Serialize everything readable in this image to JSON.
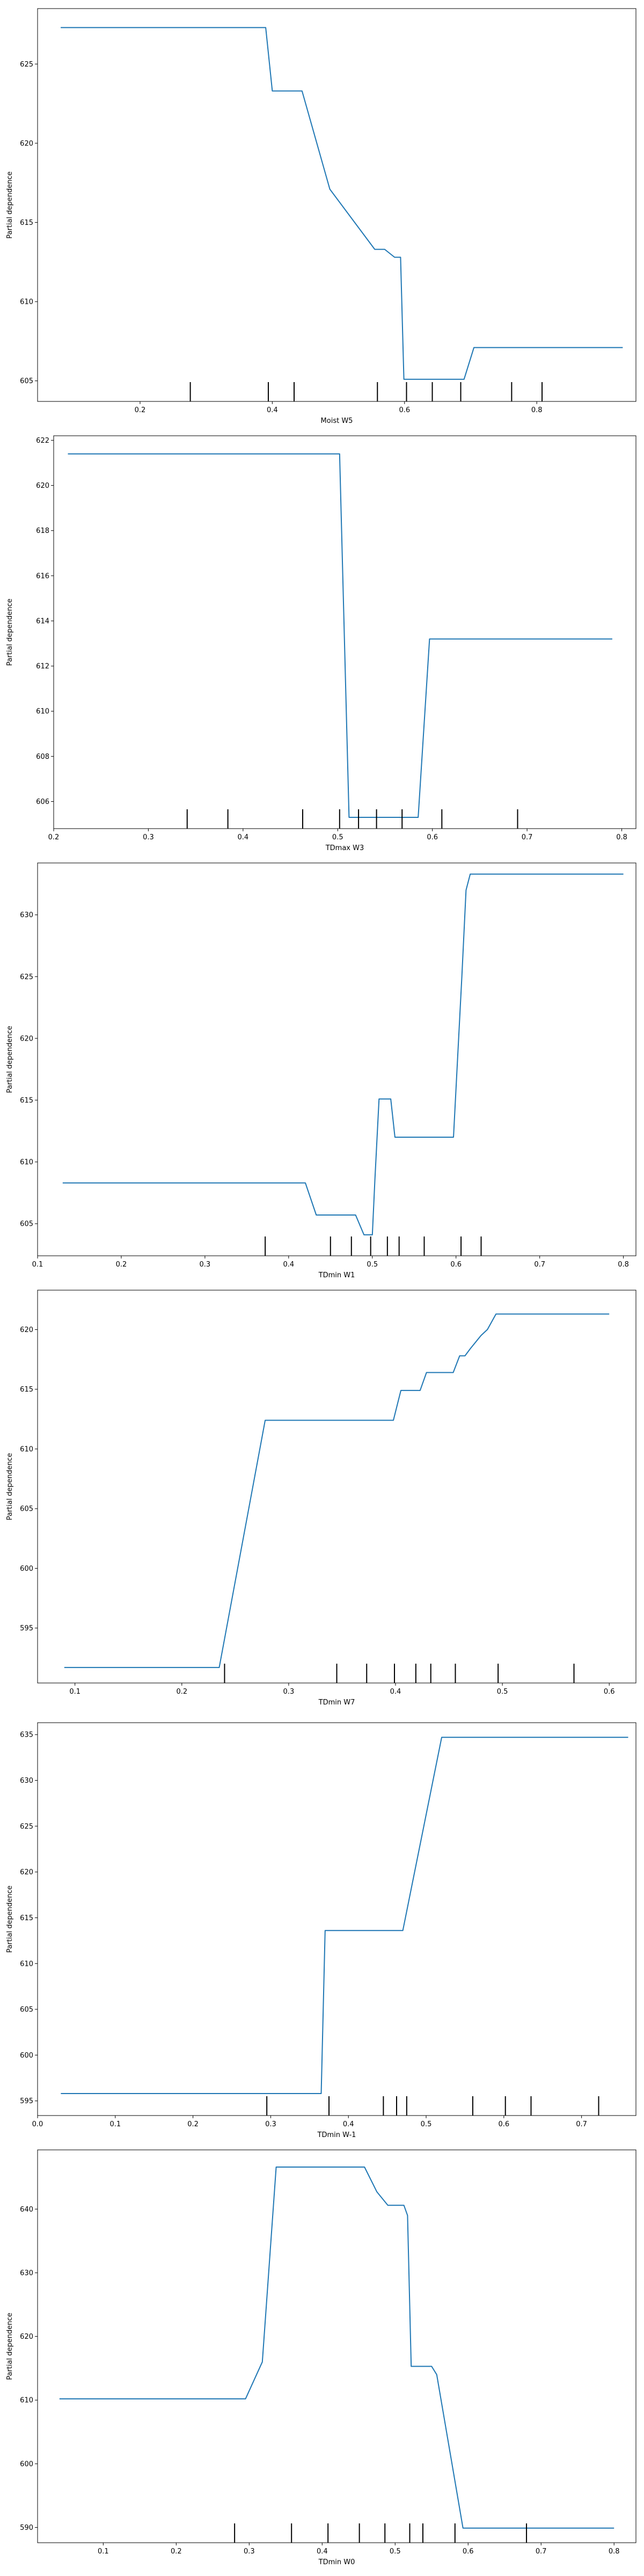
{
  "chart_data": [
    {
      "type": "line",
      "xlabel": "Moist W5",
      "ylabel": "Partial dependence",
      "xlim": [
        0.045,
        0.95
      ],
      "ylim": [
        603.7,
        628.5
      ],
      "xticks": [
        0.2,
        0.4,
        0.6,
        0.8
      ],
      "xtick_labels": [
        "0.2",
        "0.4",
        "0.6",
        "0.8"
      ],
      "yticks": [
        605,
        610,
        615,
        620,
        625
      ],
      "ytick_labels": [
        "605",
        "610",
        "615",
        "620",
        "625"
      ],
      "series": [
        {
          "color": "#1f77b4",
          "x": [
            0.08,
            0.39,
            0.4,
            0.445,
            0.487,
            0.555,
            0.57,
            0.585,
            0.594,
            0.599,
            0.603,
            0.69,
            0.705,
            0.93
          ],
          "y": [
            627.3,
            627.3,
            623.3,
            623.3,
            617.1,
            613.3,
            613.3,
            612.8,
            612.8,
            605.1,
            605.1,
            605.1,
            607.1,
            607.1
          ]
        }
      ],
      "rug": [
        0.276,
        0.394,
        0.433,
        0.559,
        0.603,
        0.642,
        0.685,
        0.762,
        0.808
      ]
    },
    {
      "type": "line",
      "xlabel": "TDmax W3",
      "ylabel": "Partial dependence",
      "xlim": [
        0.2,
        0.815
      ],
      "ylim": [
        604.8,
        622.2
      ],
      "xticks": [
        0.2,
        0.3,
        0.4,
        0.5,
        0.6,
        0.7,
        0.8
      ],
      "xtick_labels": [
        "0.2",
        "0.3",
        "0.4",
        "0.5",
        "0.6",
        "0.7",
        "0.8"
      ],
      "yticks": [
        606,
        608,
        610,
        612,
        614,
        616,
        618,
        620,
        622
      ],
      "ytick_labels": [
        "606",
        "608",
        "610",
        "612",
        "614",
        "616",
        "618",
        "620",
        "622"
      ],
      "series": [
        {
          "color": "#1f77b4",
          "x": [
            0.215,
            0.502,
            0.512,
            0.52,
            0.585,
            0.597,
            0.79
          ],
          "y": [
            621.4,
            621.4,
            605.3,
            605.3,
            605.3,
            613.2,
            613.2
          ]
        }
      ],
      "rug": [
        0.341,
        0.384,
        0.463,
        0.502,
        0.522,
        0.541,
        0.568,
        0.61,
        0.69
      ]
    },
    {
      "type": "line",
      "xlabel": "TDmin W1",
      "ylabel": "Partial dependence",
      "xlim": [
        0.1,
        0.815
      ],
      "ylim": [
        602.4,
        634.2
      ],
      "xticks": [
        0.1,
        0.2,
        0.3,
        0.4,
        0.5,
        0.6,
        0.7,
        0.8
      ],
      "xtick_labels": [
        "0.1",
        "0.2",
        "0.3",
        "0.4",
        "0.5",
        "0.6",
        "0.7",
        "0.8"
      ],
      "yticks": [
        605,
        610,
        615,
        620,
        625,
        630
      ],
      "ytick_labels": [
        "605",
        "610",
        "615",
        "620",
        "625",
        "630"
      ],
      "series": [
        {
          "color": "#1f77b4",
          "x": [
            0.13,
            0.42,
            0.433,
            0.48,
            0.49,
            0.5,
            0.503,
            0.508,
            0.512,
            0.522,
            0.527,
            0.597,
            0.607,
            0.612,
            0.617,
            0.8
          ],
          "y": [
            608.3,
            608.3,
            605.7,
            605.7,
            604.1,
            604.1,
            608.5,
            615.1,
            615.1,
            615.1,
            612.0,
            612.0,
            625.0,
            632.0,
            633.3,
            633.3
          ]
        }
      ],
      "rug": [
        0.372,
        0.45,
        0.475,
        0.498,
        0.518,
        0.532,
        0.562,
        0.606,
        0.63
      ]
    },
    {
      "type": "line",
      "xlabel": "TDmin W7",
      "ylabel": "Partial dependence",
      "xlim": [
        0.065,
        0.625
      ],
      "ylim": [
        590.4,
        623.3
      ],
      "xticks": [
        0.1,
        0.2,
        0.3,
        0.4,
        0.5,
        0.6
      ],
      "xtick_labels": [
        "0.1",
        "0.2",
        "0.3",
        "0.4",
        "0.5",
        "0.6"
      ],
      "yticks": [
        595,
        600,
        605,
        610,
        615,
        620
      ],
      "ytick_labels": [
        "595",
        "600",
        "605",
        "610",
        "615",
        "620"
      ],
      "series": [
        {
          "color": "#1f77b4",
          "x": [
            0.09,
            0.235,
            0.278,
            0.398,
            0.405,
            0.423,
            0.429,
            0.454,
            0.46,
            0.465,
            0.47,
            0.48,
            0.486,
            0.494,
            0.508,
            0.6
          ],
          "y": [
            591.7,
            591.7,
            612.4,
            612.4,
            614.9,
            614.9,
            616.4,
            616.4,
            617.8,
            617.8,
            618.4,
            619.5,
            620.0,
            621.3,
            621.3,
            621.3
          ]
        }
      ],
      "rug": [
        0.24,
        0.345,
        0.373,
        0.399,
        0.419,
        0.433,
        0.456,
        0.496,
        0.567
      ]
    },
    {
      "type": "line",
      "xlabel": "TDmin W-1",
      "ylabel": "Partial dependence",
      "xlim": [
        0.0,
        0.77
      ],
      "ylim": [
        593.4,
        636.3
      ],
      "xticks": [
        0.0,
        0.1,
        0.2,
        0.3,
        0.4,
        0.5,
        0.6,
        0.7
      ],
      "xtick_labels": [
        "0.0",
        "0.1",
        "0.2",
        "0.3",
        "0.4",
        "0.5",
        "0.6",
        "0.7"
      ],
      "yticks": [
        595,
        600,
        605,
        610,
        615,
        620,
        625,
        630,
        635
      ],
      "ytick_labels": [
        "595",
        "600",
        "605",
        "610",
        "615",
        "620",
        "625",
        "630",
        "635"
      ],
      "series": [
        {
          "color": "#1f77b4",
          "x": [
            0.03,
            0.365,
            0.37,
            0.47,
            0.52,
            0.525,
            0.76
          ],
          "y": [
            595.8,
            595.8,
            613.6,
            613.6,
            634.7,
            634.7,
            634.7
          ]
        }
      ],
      "rug": [
        0.295,
        0.375,
        0.445,
        0.462,
        0.475,
        0.56,
        0.602,
        0.635,
        0.722
      ]
    },
    {
      "type": "line",
      "xlabel": "TDmin W0",
      "ylabel": "Partial dependence",
      "xlim": [
        0.01,
        0.83
      ],
      "ylim": [
        587.6,
        649.3
      ],
      "xticks": [
        0.1,
        0.2,
        0.3,
        0.4,
        0.5,
        0.6,
        0.7,
        0.8
      ],
      "xtick_labels": [
        "0.1",
        "0.2",
        "0.3",
        "0.4",
        "0.5",
        "0.6",
        "0.7",
        "0.8"
      ],
      "yticks": [
        590,
        600,
        610,
        620,
        630,
        640
      ],
      "ytick_labels": [
        "590",
        "600",
        "610",
        "620",
        "630",
        "640"
      ],
      "series": [
        {
          "color": "#1f77b4",
          "x": [
            0.04,
            0.295,
            0.318,
            0.337,
            0.458,
            0.475,
            0.49,
            0.512,
            0.517,
            0.522,
            0.55,
            0.557,
            0.593,
            0.8
          ],
          "y": [
            610.2,
            610.2,
            616.0,
            646.6,
            646.6,
            642.7,
            640.6,
            640.6,
            639.0,
            615.3,
            615.3,
            614.0,
            589.9,
            589.9
          ]
        }
      ],
      "rug": [
        0.28,
        0.358,
        0.408,
        0.451,
        0.486,
        0.52,
        0.538,
        0.582,
        0.68
      ]
    }
  ]
}
